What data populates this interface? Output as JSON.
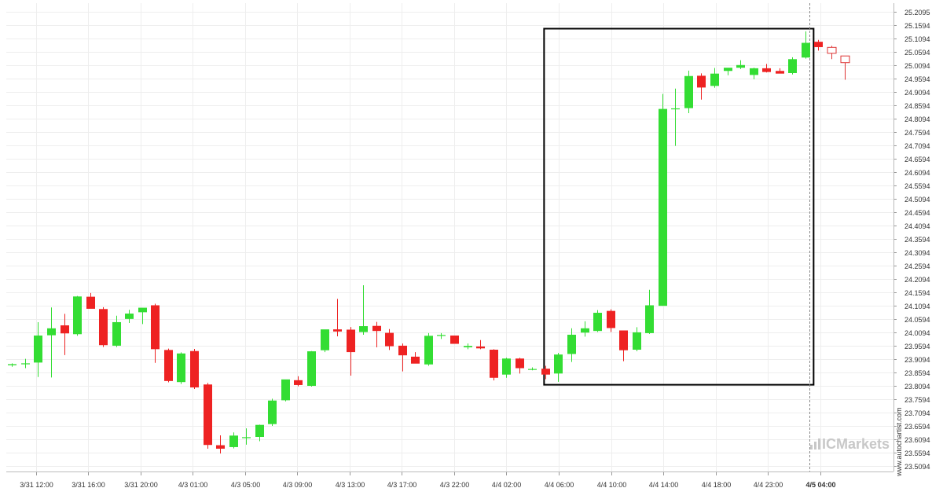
{
  "chart_data": {
    "type": "candlestick",
    "y_ticks": [
      "25.2095",
      "25.1594",
      "25.1094",
      "25.0594",
      "25.0094",
      "24.9594",
      "24.9094",
      "24.8594",
      "24.8094",
      "24.7594",
      "24.7094",
      "24.6594",
      "24.6094",
      "24.5594",
      "24.5094",
      "24.4594",
      "24.4094",
      "24.3594",
      "24.3094",
      "24.2594",
      "24.2094",
      "24.1594",
      "24.1094",
      "24.0594",
      "24.0094",
      "23.9594",
      "23.9094",
      "23.8594",
      "23.8094",
      "23.7594",
      "23.7094",
      "23.6594",
      "23.6094",
      "23.5594",
      "23.5094"
    ],
    "ylim": [
      23.488,
      25.231
    ],
    "x_ticks": [
      "3/31 12:00",
      "3/31 16:00",
      "3/31 20:00",
      "4/3 01:00",
      "4/3 05:00",
      "4/3 09:00",
      "4/3 13:00",
      "4/3 17:00",
      "4/3 22:00",
      "4/4 02:00",
      "4/4 06:00",
      "4/4 10:00",
      "4/4 14:00",
      "4/4 18:00",
      "4/4 23:00",
      "4/5 04:00"
    ],
    "x_tick_highlight": "4/5 04:00",
    "grid": true,
    "colors": {
      "up": "#33dd33",
      "down": "#ee2222",
      "forecast_outline": "#dd3333",
      "box": "#000000",
      "grid": "#eeeeee",
      "marker": "#888888",
      "text": "#333333"
    },
    "candles": [
      [
        23.887,
        23.894,
        23.881,
        23.891
      ],
      [
        23.893,
        23.911,
        23.876,
        23.894
      ],
      [
        23.897,
        24.048,
        23.843,
        23.998
      ],
      [
        23.999,
        24.103,
        23.841,
        24.025
      ],
      [
        24.036,
        24.079,
        23.925,
        24.006
      ],
      [
        24.003,
        24.146,
        23.997,
        24.144
      ],
      [
        24.143,
        24.157,
        24.105,
        24.098
      ],
      [
        24.097,
        24.104,
        23.955,
        23.962
      ],
      [
        23.96,
        24.072,
        23.955,
        24.048
      ],
      [
        24.06,
        24.094,
        24.045,
        24.08
      ],
      [
        24.085,
        24.101,
        24.041,
        24.102
      ],
      [
        24.111,
        24.117,
        23.896,
        23.947
      ],
      [
        23.944,
        23.949,
        23.823,
        23.828
      ],
      [
        23.824,
        23.935,
        23.817,
        23.931
      ],
      [
        23.94,
        23.948,
        23.798,
        23.804
      ],
      [
        23.815,
        23.821,
        23.575,
        23.589
      ],
      [
        23.588,
        23.625,
        23.557,
        23.575
      ],
      [
        23.581,
        23.636,
        23.576,
        23.624
      ],
      [
        23.617,
        23.651,
        23.59,
        23.618
      ],
      [
        23.619,
        23.665,
        23.603,
        23.664
      ],
      [
        23.667,
        23.762,
        23.66,
        23.755
      ],
      [
        23.756,
        23.833,
        23.752,
        23.834
      ],
      [
        23.831,
        23.846,
        23.808,
        23.813
      ],
      [
        23.81,
        23.94,
        23.807,
        23.939
      ],
      [
        23.943,
        24.019,
        23.936,
        24.021
      ],
      [
        24.021,
        24.135,
        23.995,
        24.013
      ],
      [
        24.02,
        24.03,
        23.848,
        23.936
      ],
      [
        24.011,
        24.186,
        24.001,
        24.033
      ],
      [
        24.034,
        24.049,
        23.954,
        24.015
      ],
      [
        24.008,
        24.022,
        23.944,
        23.958
      ],
      [
        23.96,
        23.968,
        23.864,
        23.924
      ],
      [
        23.919,
        23.936,
        23.896,
        23.893
      ],
      [
        23.89,
        24.007,
        23.885,
        23.997
      ],
      [
        24.0,
        24.007,
        23.985,
        24.0
      ],
      [
        23.998,
        23.998,
        23.97,
        23.967
      ],
      [
        23.954,
        23.968,
        23.947,
        23.959
      ],
      [
        23.957,
        23.981,
        23.947,
        23.95
      ],
      [
        23.945,
        23.947,
        23.83,
        23.84
      ],
      [
        23.852,
        23.915,
        23.84,
        23.912
      ],
      [
        23.912,
        23.915,
        23.856,
        23.876
      ],
      [
        23.871,
        23.879,
        23.868,
        23.873
      ],
      [
        23.874,
        23.885,
        23.835,
        23.852
      ],
      [
        23.856,
        23.933,
        23.825,
        23.927
      ],
      [
        23.929,
        24.025,
        23.899,
        24.001
      ],
      [
        24.009,
        24.051,
        23.994,
        24.025
      ],
      [
        24.015,
        24.093,
        24.011,
        24.083
      ],
      [
        24.09,
        24.096,
        24.011,
        24.026
      ],
      [
        24.017,
        24.017,
        23.902,
        23.943
      ],
      [
        23.945,
        24.029,
        23.939,
        24.01
      ],
      [
        24.007,
        24.169,
        24.004,
        24.111
      ],
      [
        24.109,
        24.901,
        24.109,
        24.845
      ],
      [
        24.847,
        24.921,
        24.707,
        24.847
      ],
      [
        24.848,
        24.988,
        24.829,
        24.968
      ],
      [
        24.969,
        24.978,
        24.88,
        24.925
      ],
      [
        24.931,
        24.998,
        24.924,
        24.977
      ],
      [
        24.987,
        24.997,
        24.971,
        24.999
      ],
      [
        24.999,
        25.027,
        24.994,
        25.009
      ],
      [
        24.972,
        24.999,
        24.956,
        24.997
      ],
      [
        24.997,
        25.013,
        24.981,
        24.983
      ],
      [
        24.987,
        24.997,
        24.98,
        24.977
      ],
      [
        24.979,
        25.038,
        24.974,
        25.031
      ],
      [
        25.037,
        25.135,
        25.033,
        25.092
      ],
      [
        25.096,
        25.103,
        25.063,
        25.076
      ]
    ],
    "forecast_candles": [
      [
        25.075,
        25.081,
        25.031,
        25.053
      ],
      [
        25.043,
        25.043,
        24.954,
        25.018
      ]
    ],
    "highlight_box": {
      "x_from_index": 41,
      "x_to_index": 61,
      "y_top": 25.145,
      "y_bottom": 23.814
    },
    "marker_index": 61,
    "watermark": {
      "side_text": "www.autochartist.com",
      "brand_text": "ICMarkets"
    }
  }
}
